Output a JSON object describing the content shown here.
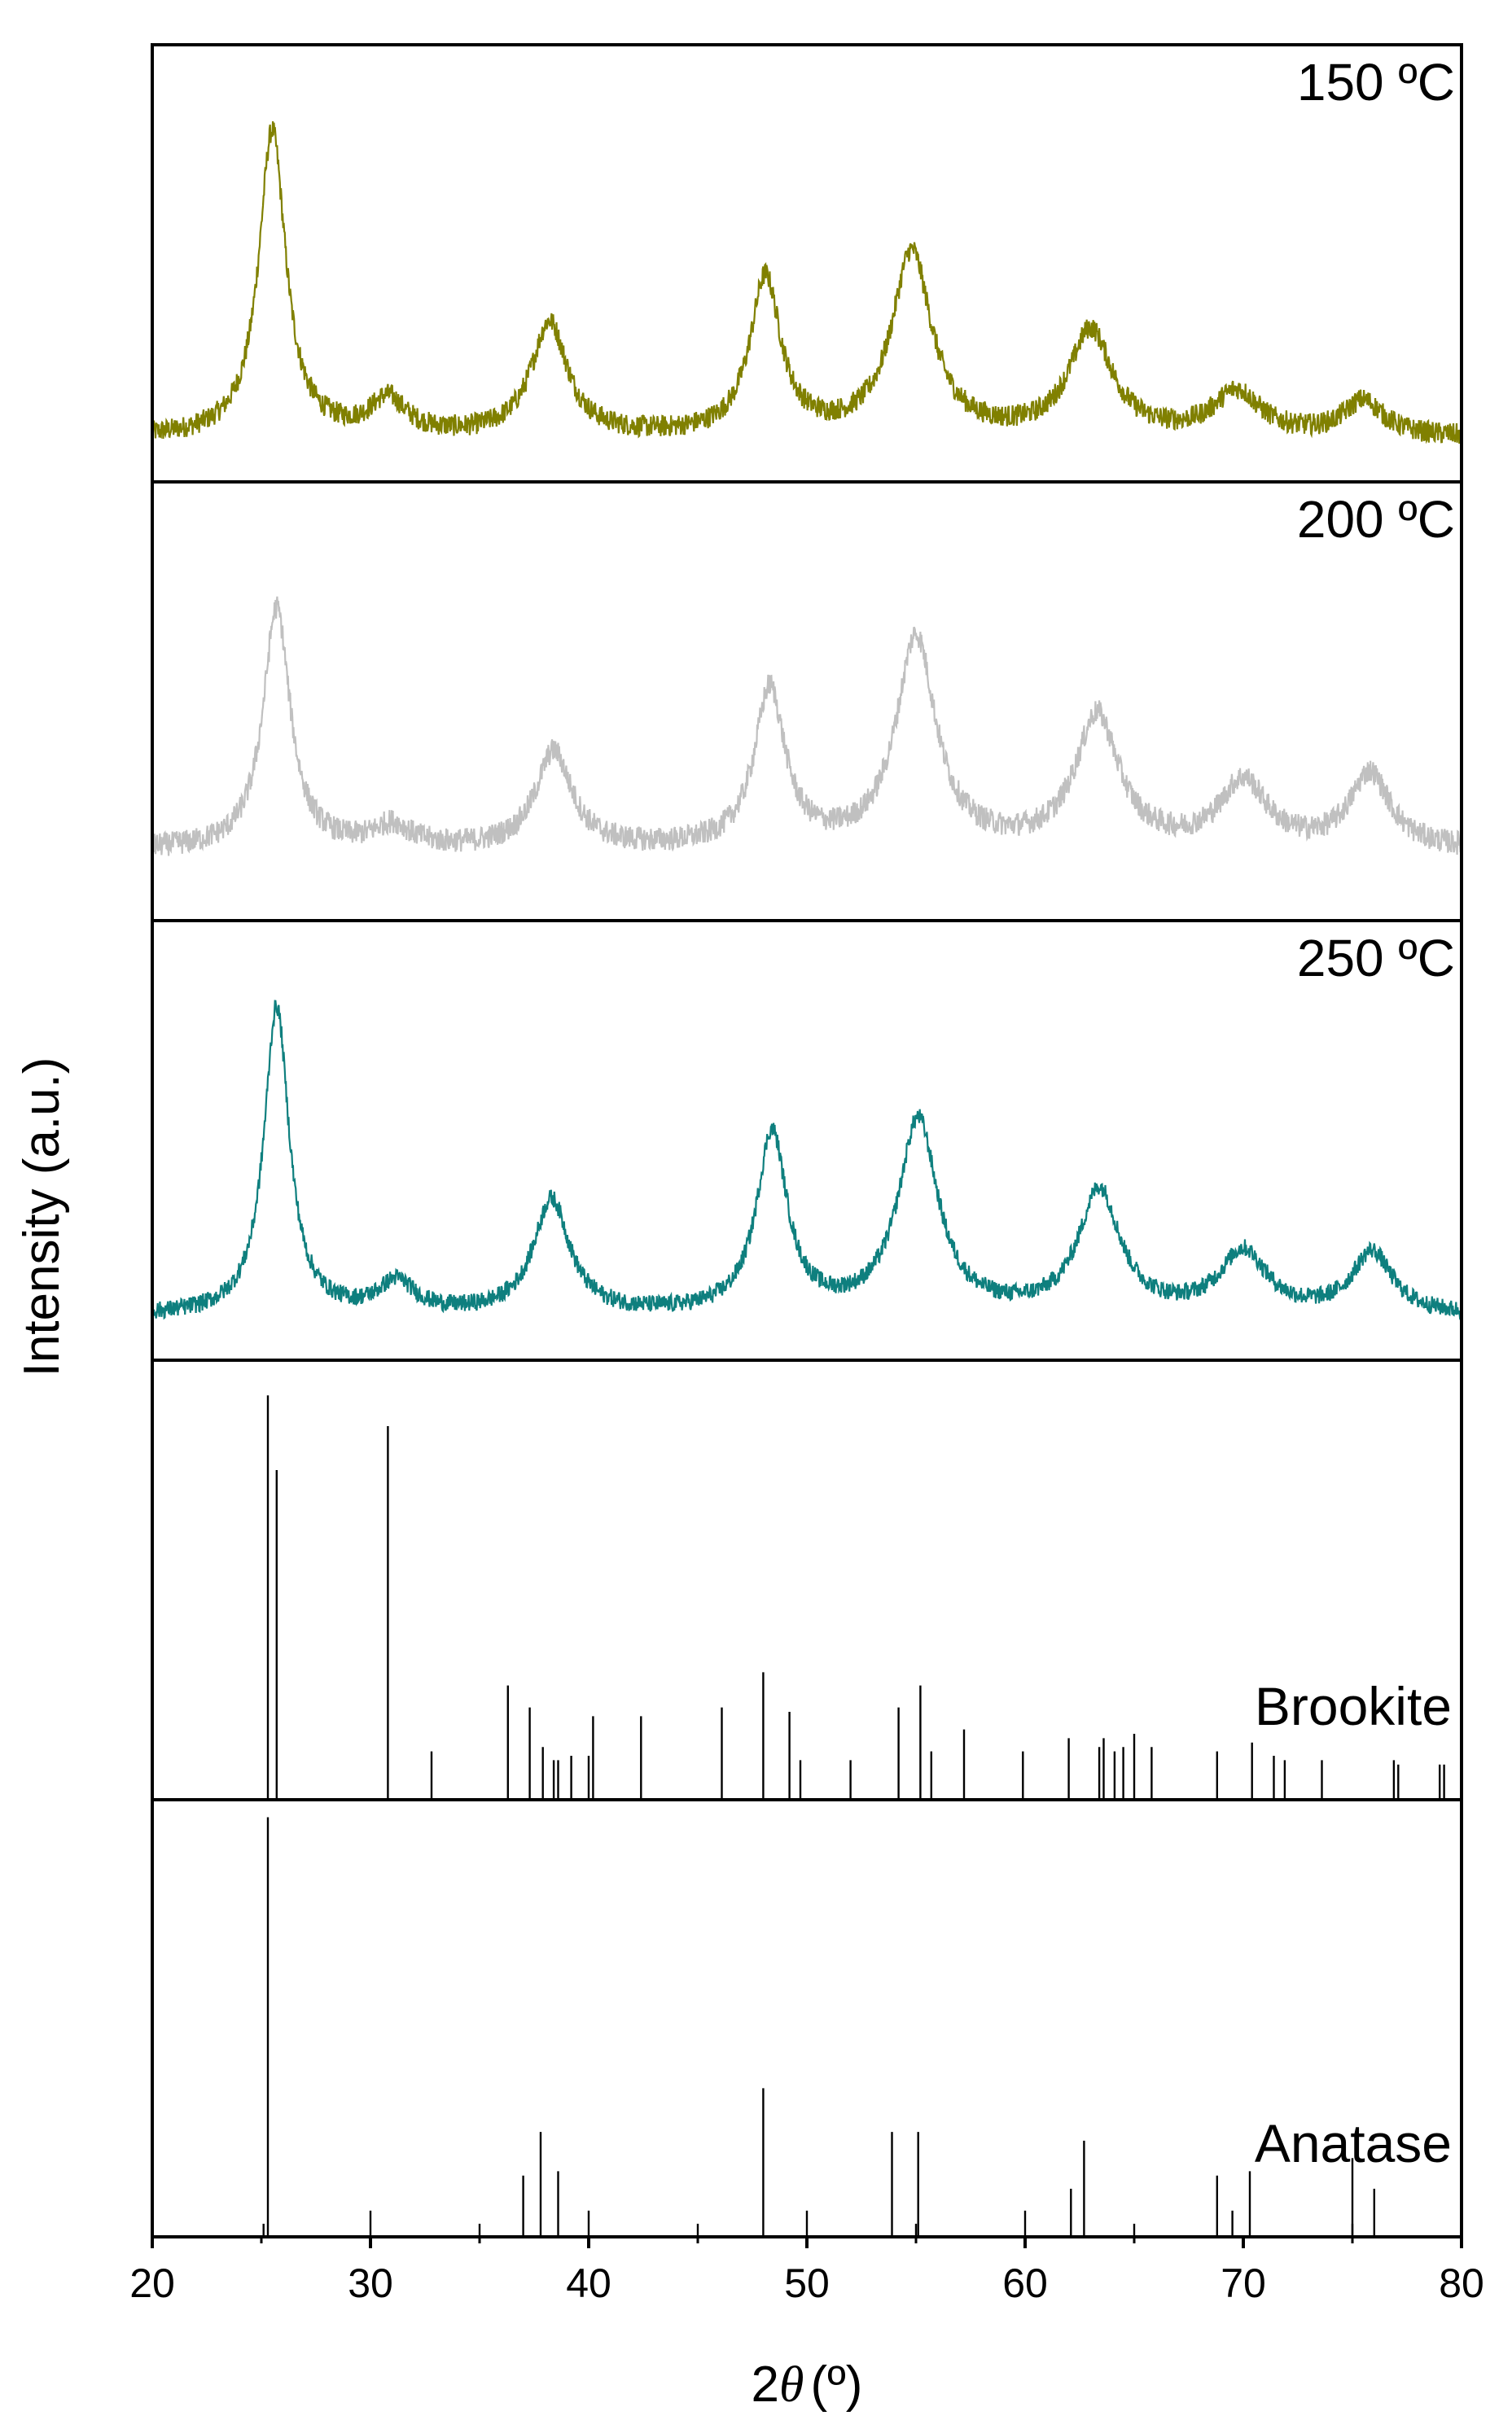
{
  "chart_data": {
    "type": "line",
    "xlabel_prefix": "2",
    "xlabel_theta": "θ",
    "xlabel_unit": "(º)",
    "ylabel": "Intensity (a.u.)",
    "xlim": [
      20,
      80
    ],
    "x_ticks": [
      "20",
      "30",
      "40",
      "50",
      "60",
      "70",
      "80"
    ],
    "series": [
      {
        "name": "150 ºC",
        "color": "#808000",
        "peaks": [
          {
            "x": 25.5,
            "h": 0.7,
            "w": 0.75
          },
          {
            "x": 30.8,
            "h": 0.08,
            "w": 1.0
          },
          {
            "x": 38.2,
            "h": 0.26,
            "w": 1.0
          },
          {
            "x": 48.1,
            "h": 0.36,
            "w": 0.85
          },
          {
            "x": 54.8,
            "h": 0.42,
            "w": 1.1
          },
          {
            "x": 63.0,
            "h": 0.24,
            "w": 1.2
          },
          {
            "x": 69.7,
            "h": 0.1,
            "w": 1.3
          },
          {
            "x": 75.5,
            "h": 0.08,
            "w": 1.1
          }
        ],
        "baseline": 0.1,
        "noise": 0.05
      },
      {
        "name": "200 ºC",
        "color": "#c0c0c0",
        "peaks": [
          {
            "x": 25.7,
            "h": 0.55,
            "w": 0.75
          },
          {
            "x": 31.0,
            "h": 0.05,
            "w": 1.0
          },
          {
            "x": 38.4,
            "h": 0.22,
            "w": 1.0
          },
          {
            "x": 48.3,
            "h": 0.36,
            "w": 0.85
          },
          {
            "x": 55.0,
            "h": 0.48,
            "w": 1.1
          },
          {
            "x": 63.3,
            "h": 0.3,
            "w": 1.2
          },
          {
            "x": 70.0,
            "h": 0.15,
            "w": 1.3
          },
          {
            "x": 75.8,
            "h": 0.17,
            "w": 1.1
          }
        ],
        "baseline": 0.16,
        "noise": 0.055
      },
      {
        "name": "250 ºC",
        "color": "#0e7f7e",
        "peaks": [
          {
            "x": 25.7,
            "h": 0.7,
            "w": 0.7
          },
          {
            "x": 31.2,
            "h": 0.07,
            "w": 1.0
          },
          {
            "x": 38.3,
            "h": 0.26,
            "w": 1.0
          },
          {
            "x": 48.4,
            "h": 0.41,
            "w": 0.85
          },
          {
            "x": 55.1,
            "h": 0.44,
            "w": 1.1
          },
          {
            "x": 63.4,
            "h": 0.28,
            "w": 1.15
          },
          {
            "x": 70.0,
            "h": 0.14,
            "w": 1.3
          },
          {
            "x": 75.9,
            "h": 0.14,
            "w": 1.1
          }
        ],
        "baseline": 0.1,
        "noise": 0.04
      }
    ],
    "references": [
      {
        "name": "Brookite",
        "lines": [
          {
            "x": 25.3,
            "h": 0.92
          },
          {
            "x": 25.7,
            "h": 0.75
          },
          {
            "x": 30.8,
            "h": 0.85
          },
          {
            "x": 32.8,
            "h": 0.11
          },
          {
            "x": 36.3,
            "h": 0.26
          },
          {
            "x": 37.3,
            "h": 0.21
          },
          {
            "x": 37.9,
            "h": 0.12
          },
          {
            "x": 38.4,
            "h": 0.09
          },
          {
            "x": 38.6,
            "h": 0.09
          },
          {
            "x": 39.2,
            "h": 0.1
          },
          {
            "x": 40.0,
            "h": 0.1
          },
          {
            "x": 40.2,
            "h": 0.19
          },
          {
            "x": 42.4,
            "h": 0.19
          },
          {
            "x": 46.1,
            "h": 0.21
          },
          {
            "x": 48.0,
            "h": 0.29
          },
          {
            "x": 49.2,
            "h": 0.2
          },
          {
            "x": 49.7,
            "h": 0.09
          },
          {
            "x": 52.0,
            "h": 0.09
          },
          {
            "x": 54.2,
            "h": 0.21
          },
          {
            "x": 55.2,
            "h": 0.26
          },
          {
            "x": 55.7,
            "h": 0.11
          },
          {
            "x": 57.2,
            "h": 0.16
          },
          {
            "x": 59.9,
            "h": 0.11
          },
          {
            "x": 62.0,
            "h": 0.14
          },
          {
            "x": 63.4,
            "h": 0.12
          },
          {
            "x": 63.6,
            "h": 0.14
          },
          {
            "x": 64.1,
            "h": 0.11
          },
          {
            "x": 64.5,
            "h": 0.12
          },
          {
            "x": 65.0,
            "h": 0.15
          },
          {
            "x": 65.8,
            "h": 0.12
          },
          {
            "x": 68.8,
            "h": 0.11
          },
          {
            "x": 70.4,
            "h": 0.13
          },
          {
            "x": 71.4,
            "h": 0.1
          },
          {
            "x": 71.9,
            "h": 0.09
          },
          {
            "x": 73.6,
            "h": 0.09
          },
          {
            "x": 76.9,
            "h": 0.09
          },
          {
            "x": 77.1,
            "h": 0.08
          },
          {
            "x": 79.0,
            "h": 0.08
          },
          {
            "x": 79.2,
            "h": 0.08
          }
        ]
      },
      {
        "name": "Anatase",
        "lines": [
          {
            "x": 25.3,
            "h": 0.96
          },
          {
            "x": 25.1,
            "h": 0.03
          },
          {
            "x": 30.0,
            "h": 0.06
          },
          {
            "x": 35.0,
            "h": 0.03
          },
          {
            "x": 37.0,
            "h": 0.14
          },
          {
            "x": 37.8,
            "h": 0.24
          },
          {
            "x": 38.6,
            "h": 0.15
          },
          {
            "x": 40.0,
            "h": 0.06
          },
          {
            "x": 45.0,
            "h": 0.03
          },
          {
            "x": 48.0,
            "h": 0.34
          },
          {
            "x": 50.0,
            "h": 0.06
          },
          {
            "x": 53.9,
            "h": 0.24
          },
          {
            "x": 55.1,
            "h": 0.24
          },
          {
            "x": 55.0,
            "h": 0.03
          },
          {
            "x": 60.0,
            "h": 0.06
          },
          {
            "x": 62.1,
            "h": 0.11
          },
          {
            "x": 62.7,
            "h": 0.22
          },
          {
            "x": 65.0,
            "h": 0.03
          },
          {
            "x": 68.8,
            "h": 0.14
          },
          {
            "x": 69.5,
            "h": 0.06
          },
          {
            "x": 70.3,
            "h": 0.15
          },
          {
            "x": 75.0,
            "h": 0.03
          },
          {
            "x": 75.0,
            "h": 0.18
          },
          {
            "x": 76.0,
            "h": 0.11
          }
        ]
      }
    ]
  }
}
